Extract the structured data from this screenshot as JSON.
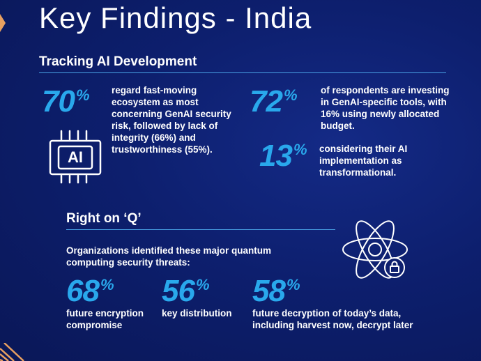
{
  "title": "Key Findings - India",
  "section1": {
    "heading": "Tracking AI Development",
    "stat1": {
      "value": "70",
      "unit": "%",
      "text": "regard fast-moving ecosystem as most concerning GenAI security risk, followed by lack of integrity (66%) and trustworthiness (55%)."
    },
    "stat2": {
      "value": "72",
      "unit": "%",
      "text": "of respondents are investing in GenAI-specific tools, with 16% using newly allocated budget."
    },
    "stat3": {
      "value": "13",
      "unit": "%",
      "text": "considering their AI implementation as transformational."
    },
    "chip_icon": {
      "icon": "ai-chip-icon",
      "label": "AI"
    }
  },
  "section2": {
    "heading": "Right on ‘Q’",
    "intro": "Organizations identified these major quantum computing security threats:",
    "stat1": {
      "value": "68",
      "unit": "%",
      "text": "future encryption compromise"
    },
    "stat2": {
      "value": "56",
      "unit": "%",
      "text": "key distribution"
    },
    "stat3": {
      "value": "58",
      "unit": "%",
      "text": "future decryption of today’s data, including harvest now, decrypt later"
    },
    "atom_icon": "atom-lock-icon"
  },
  "colors": {
    "background": "#0d1f6e",
    "accent": "#29a8ec",
    "rule": "#4aa3e6",
    "corner": "#e8a060"
  }
}
